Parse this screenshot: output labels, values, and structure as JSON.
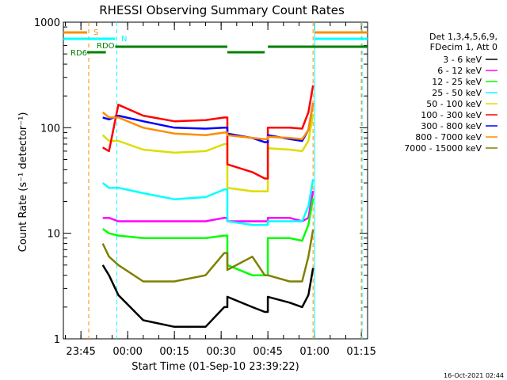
{
  "chart_data": {
    "type": "line",
    "title": "RHESSI Observing Summary Count Rates",
    "xlabel": "Start Time (01-Sep-10 23:39:22)",
    "ylabel": "Count Rate (s⁻¹ detector⁻¹)",
    "yscale": "log",
    "ylim": [
      1,
      1000
    ],
    "xlim": [
      "23:39:22",
      "01:17:00"
    ],
    "x_ticks": [
      "23:45",
      "00:00",
      "00:15",
      "00:30",
      "00:45",
      "01:00",
      "01:15"
    ],
    "y_ticks": [
      "1",
      "10",
      "100",
      "1000"
    ],
    "legend_header": [
      "Det 1,3,4,5,6,9,",
      "FDecim 1, Att 0"
    ],
    "legend_position": "right",
    "timestamp": "16-Oct-2021 02:44",
    "flags": [
      {
        "label": "S",
        "color": "#ff8c00",
        "segments": [
          [
            "23:39:22",
            "23:47:00"
          ],
          [
            "01:00:00",
            "01:17:00"
          ]
        ]
      },
      {
        "label": "N",
        "color": "#00ffff",
        "segments": [
          [
            "23:39:22",
            "23:56:00"
          ],
          [
            "01:00:00",
            "01:17:00"
          ]
        ]
      },
      {
        "label": "RDO",
        "color": "#008000",
        "segments": [
          [
            "23:56:00",
            "00:32:00"
          ],
          [
            "00:45:00",
            "01:17:00"
          ]
        ]
      },
      {
        "label": "RD6",
        "color": "#008000",
        "segments": [
          [
            "23:47:00",
            "23:53:00"
          ],
          [
            "00:32:00",
            "00:44:00"
          ]
        ]
      }
    ],
    "vlines": [
      {
        "t": "23:47:30",
        "color": "#ff8c00",
        "style": "dashed"
      },
      {
        "t": "23:56:30",
        "color": "#00ffff",
        "style": "dashed"
      },
      {
        "t": "00:59:30",
        "color": "#ff8c00",
        "style": "dashed"
      },
      {
        "t": "01:00:00",
        "color": "#00ffff",
        "style": "solid"
      },
      {
        "t": "01:15:00",
        "color": "#ff8c00",
        "style": "dashed"
      },
      {
        "t": "01:15:15",
        "color": "#00ffff",
        "style": "dashed"
      }
    ],
    "x": [
      "23:52",
      "23:54",
      "23:57",
      "00:05",
      "00:15",
      "00:25",
      "00:31",
      "00:32",
      "00:40",
      "00:44",
      "00:45",
      "00:52",
      "00:56",
      "00:58"
    ],
    "series": [
      {
        "name": "3 - 6 keV",
        "color": "#000000",
        "values": [
          5,
          4,
          2.6,
          1.5,
          1.3,
          1.3,
          2.0,
          2.5,
          2.0,
          1.8,
          2.5,
          2.2,
          2.0,
          2.6
        ]
      },
      {
        "name": "6 - 12 keV",
        "color": "#ff00ff",
        "values": [
          14,
          14,
          13,
          13,
          13,
          13,
          14,
          13,
          13,
          13,
          14,
          14,
          13,
          14
        ]
      },
      {
        "name": "12 - 25 keV",
        "color": "#00ff00",
        "values": [
          11,
          10,
          9.5,
          9,
          9,
          9,
          9.5,
          5,
          4,
          4,
          9,
          9,
          8.5,
          12
        ]
      },
      {
        "name": "25 - 50 keV",
        "color": "#00ffff",
        "values": [
          30,
          27,
          27,
          24,
          21,
          22,
          26,
          13,
          12,
          12,
          13,
          13,
          13,
          18
        ]
      },
      {
        "name": "50 - 100 keV",
        "color": "#dddd00",
        "values": [
          85,
          75,
          75,
          62,
          58,
          60,
          70,
          27,
          25,
          25,
          64,
          62,
          60,
          75
        ]
      },
      {
        "name": "100 - 300 keV",
        "color": "#ff0000",
        "values": [
          65,
          60,
          165,
          130,
          115,
          118,
          125,
          45,
          38,
          33,
          100,
          100,
          98,
          140
        ]
      },
      {
        "name": "300 - 800 keV",
        "color": "#0000ff",
        "values": [
          125,
          120,
          130,
          115,
          100,
          98,
          100,
          88,
          80,
          73,
          85,
          78,
          75,
          95
        ]
      },
      {
        "name": "800 - 7000 keV",
        "color": "#ff8c00",
        "values": [
          140,
          125,
          125,
          100,
          88,
          85,
          90,
          85,
          80,
          78,
          82,
          80,
          78,
          95
        ]
      },
      {
        "name": "7000 - 15000 keV",
        "color": "#808000",
        "values": [
          8,
          6,
          5,
          3.5,
          3.5,
          4,
          6.5,
          4.5,
          6,
          4,
          4,
          3.5,
          3.5,
          6
        ]
      }
    ]
  }
}
